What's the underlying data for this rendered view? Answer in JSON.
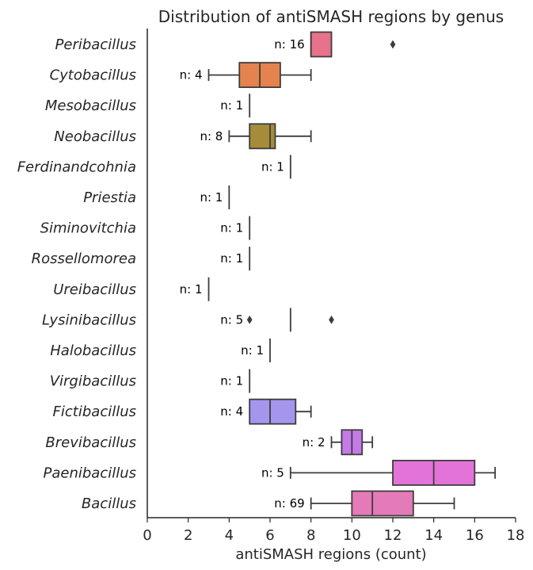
{
  "chart_data": {
    "type": "box",
    "title": "Distribution of antiSMASH regions by genus",
    "xlabel": "antiSMASH regions (count)",
    "ylabel": "",
    "xlim": [
      0,
      18
    ],
    "xticks": [
      0,
      2,
      4,
      6,
      8,
      10,
      12,
      14,
      16,
      18
    ],
    "grid": false,
    "orientation": "horizontal",
    "groups": [
      {
        "name": "Peribacillus",
        "n_label": "n: 16",
        "min": 8,
        "q1": 8,
        "median": 8,
        "q3": 9,
        "max": 9,
        "outliers": [
          12
        ],
        "color": "#e8718b"
      },
      {
        "name": "Cytobacillus",
        "n_label": "n: 4",
        "min": 3,
        "q1": 4.5,
        "median": 5.5,
        "q3": 6.5,
        "max": 8,
        "outliers": [],
        "color": "#e4834d"
      },
      {
        "name": "Mesobacillus",
        "n_label": "n: 1",
        "min": 5,
        "q1": 5,
        "median": 5,
        "q3": 5,
        "max": 5,
        "outliers": [],
        "color": "#c7923c"
      },
      {
        "name": "Neobacillus",
        "n_label": "n: 8",
        "min": 4,
        "q1": 5,
        "median": 6,
        "q3": 6.25,
        "max": 8,
        "outliers": [],
        "color": "#a48c3a"
      },
      {
        "name": "Ferdinandcohnia",
        "n_label": "n: 1",
        "min": 7,
        "q1": 7,
        "median": 7,
        "q3": 7,
        "max": 7,
        "outliers": [],
        "color": "#8c9a3a"
      },
      {
        "name": "Priestia",
        "n_label": "n: 1",
        "min": 4,
        "q1": 4,
        "median": 4,
        "q3": 4,
        "max": 4,
        "outliers": [],
        "color": "#5aa04a"
      },
      {
        "name": "Siminovitchia",
        "n_label": "n: 1",
        "min": 5,
        "q1": 5,
        "median": 5,
        "q3": 5,
        "max": 5,
        "outliers": [],
        "color": "#45a481"
      },
      {
        "name": "Rossellomorea",
        "n_label": "n: 1",
        "min": 5,
        "q1": 5,
        "median": 5,
        "q3": 5,
        "max": 5,
        "outliers": [],
        "color": "#47a49c"
      },
      {
        "name": "Ureibacillus",
        "n_label": "n: 1",
        "min": 3,
        "q1": 3,
        "median": 3,
        "q3": 3,
        "max": 3,
        "outliers": [],
        "color": "#49a2b3"
      },
      {
        "name": "Lysinibacillus",
        "n_label": "n: 5",
        "min": 7,
        "q1": 7,
        "median": 7,
        "q3": 7,
        "max": 7,
        "outliers": [
          5,
          9
        ],
        "color": "#4ca0c8"
      },
      {
        "name": "Halobacillus",
        "n_label": "n: 1",
        "min": 6,
        "q1": 6,
        "median": 6,
        "q3": 6,
        "max": 6,
        "outliers": [],
        "color": "#5b9ce0"
      },
      {
        "name": "Virgibacillus",
        "n_label": "n: 1",
        "min": 5,
        "q1": 5,
        "median": 5,
        "q3": 5,
        "max": 5,
        "outliers": [],
        "color": "#7c98ec"
      },
      {
        "name": "Fictibacillus",
        "n_label": "n: 4",
        "min": 5,
        "q1": 5,
        "median": 6,
        "q3": 7.25,
        "max": 8,
        "outliers": [],
        "color": "#a595ec"
      },
      {
        "name": "Brevibacillus",
        "n_label": "n: 2",
        "min": 9,
        "q1": 9.5,
        "median": 10,
        "q3": 10.5,
        "max": 11,
        "outliers": [],
        "color": "#c67ae8"
      },
      {
        "name": "Paenibacillus",
        "n_label": "n: 5",
        "min": 7,
        "q1": 12,
        "median": 14,
        "q3": 16,
        "max": 17,
        "outliers": [],
        "color": "#e373d8"
      },
      {
        "name": "Bacillus",
        "n_label": "n: 69",
        "min": 8,
        "q1": 10,
        "median": 11,
        "q3": 13,
        "max": 15,
        "outliers": [],
        "color": "#e57ab8"
      }
    ]
  }
}
